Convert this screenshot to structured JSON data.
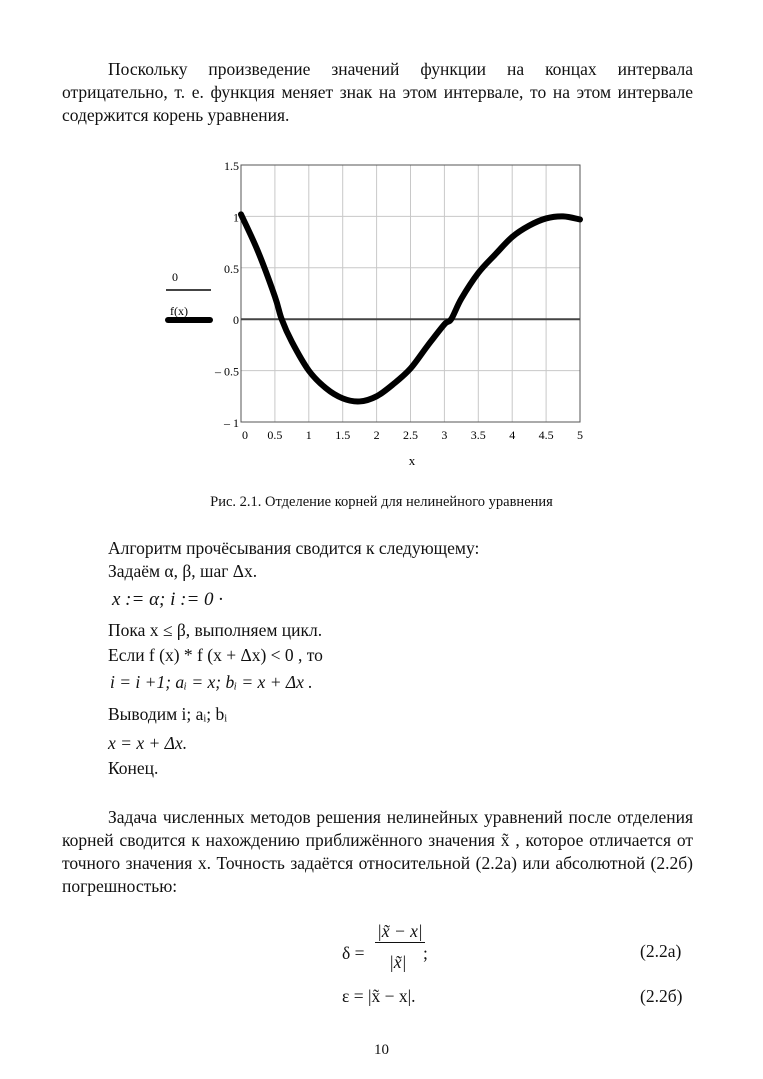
{
  "paragraphs": {
    "p1": "Поскольку произведение значений функции на концах интервала отрицательно, т. е. функция меняет знак на этом интервале, то на этом интервале содержится корень уравнения.",
    "p2": "Задача численных методов решения нелинейных уравнений после отделения корней сводится к нахождению приближённого значения x̃ , которое отличается от точного значения x. Точность задаётся относительной (2.2а) или абсолютной (2.2б) погрешностью:"
  },
  "figure_caption": "Рис. 2.1. Отделение корней для нелинейного уравнения",
  "algorithm": [
    "Алгоритм прочёсывания сводится к следующему:",
    "Задаём α, β, шаг Δx.",
    "x := α; i := 0 ·",
    "Пока x ≤ β, выполняем цикл.",
    "Если f (x) * f (x + Δx) < 0 , то",
    "i = i +1; aᵢ = x; bᵢ = x + Δx .",
    "Выводим i; aᵢ; bᵢ",
    "x = x + Δx.",
    "Конец."
  ],
  "equations": [
    {
      "numer": "|x̃ − x|",
      "lhs": "δ =",
      "denom": "|x̃|",
      "tail": ";",
      "label": "(2.2а)"
    },
    {
      "expr": "ε = |x̃ − x|.",
      "label": "(2.2б)"
    }
  ],
  "page_number": "10",
  "chart_data": {
    "type": "line",
    "xlabel": "x",
    "xlim": [
      0,
      5
    ],
    "ylim": [
      -1,
      1.5
    ],
    "xticks": [
      "0",
      "0.5",
      "1",
      "1.5",
      "2",
      "2.5",
      "3",
      "3.5",
      "4",
      "4.5",
      "5"
    ],
    "yticks": [
      "1.5",
      "1",
      "0.5",
      "0",
      "– 0.5",
      "– 1"
    ],
    "grid": true,
    "legend": [
      "0",
      "f(x)"
    ],
    "legend_placement": "left",
    "series": [
      {
        "name": "0",
        "x": [
          0,
          5
        ],
        "y": [
          0,
          0
        ]
      },
      {
        "name": "f(x)",
        "x": [
          0,
          0.25,
          0.5,
          0.6,
          0.75,
          1,
          1.25,
          1.5,
          1.75,
          2,
          2.25,
          2.5,
          2.75,
          3,
          3.1,
          3.25,
          3.5,
          3.75,
          4,
          4.25,
          4.5,
          4.75,
          5
        ],
        "y": [
          1.02,
          0.66,
          0.22,
          0,
          -0.22,
          -0.5,
          -0.67,
          -0.77,
          -0.8,
          -0.75,
          -0.63,
          -0.48,
          -0.26,
          -0.05,
          0,
          0.2,
          0.45,
          0.63,
          0.8,
          0.91,
          0.98,
          1.0,
          0.97
        ]
      }
    ]
  }
}
